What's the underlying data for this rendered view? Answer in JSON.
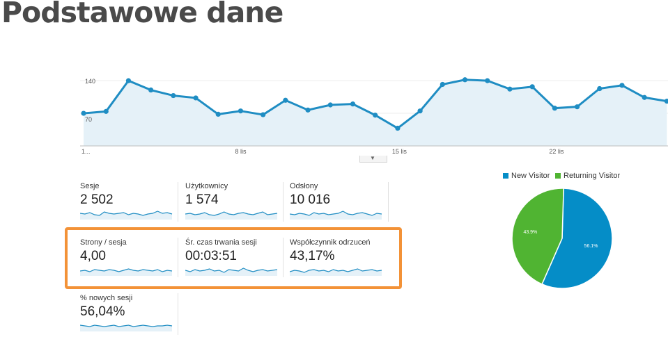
{
  "slide": {
    "title": "Podstawowe dane"
  },
  "chart_data": [
    {
      "type": "line",
      "y_ticks": [
        "140",
        "70"
      ],
      "x_tick_labels": [
        "1...",
        "8 lis",
        "15 lis",
        "22 lis"
      ],
      "ylim": [
        0,
        170
      ],
      "series": [
        {
          "values": [
            70,
            74,
            140,
            120,
            108,
            103,
            68,
            75,
            67,
            98,
            77,
            88,
            90,
            66,
            38,
            75,
            132,
            142,
            140,
            122,
            127,
            81,
            84,
            123,
            130,
            104,
            96
          ]
        }
      ],
      "colors": {
        "line": "#1f8dc3",
        "fill": "#e5f1f8",
        "grid": "#ececec"
      }
    },
    {
      "type": "pie",
      "categories": [
        "New Visitor",
        "Returning Visitor"
      ],
      "values": [
        56.1,
        43.9
      ],
      "labels": [
        "56.1%",
        "43.9%"
      ],
      "colors": [
        "#058dc7",
        "#50b432"
      ],
      "legend": "top"
    }
  ],
  "metrics": [
    {
      "label": "Sesje",
      "value": "2 502"
    },
    {
      "label": "Użytkownicy",
      "value": "1 574"
    },
    {
      "label": "Odsłony",
      "value": "10 016"
    },
    {
      "label": "Strony / sesja",
      "value": "4,00"
    },
    {
      "label": "Śr. czas trwania sesji",
      "value": "00:03:51"
    },
    {
      "label": "Współczynnik odrzuceń",
      "value": "43,17%"
    },
    {
      "label": "% nowych sesji",
      "value": "56,04%"
    }
  ],
  "highlight_color": "#f39237"
}
